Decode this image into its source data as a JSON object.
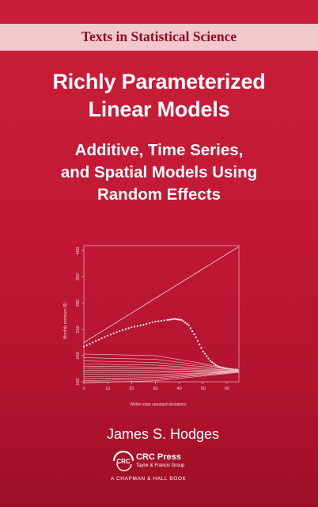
{
  "series": {
    "label": "Texts in Statistical Science"
  },
  "title": {
    "line1": "Richly Parameterized",
    "line2": "Linear Models"
  },
  "subtitle": {
    "line1": "Additive, Time Series,",
    "line2": "and Spatial Models Using",
    "line3": "Random Effects"
  },
  "author": "James S. Hodges",
  "publisher": {
    "logo": "CRC",
    "name": "CRC Press",
    "group": "Taylor & Francis Group",
    "imprint": "A CHAPMAN & HALL BOOK"
  },
  "colors": {
    "cover": "#c21935",
    "band": "#f2c7cd",
    "series_text": "#8a1020"
  },
  "chart_data": {
    "type": "line",
    "xlabel": "Within-state standard deviations",
    "ylabel": "Monthly premium ($)",
    "xlim": [
      0,
      65
    ],
    "ylim": [
      150,
      410
    ],
    "x_ticks": [
      "0",
      "10",
      "20",
      "30",
      "40",
      "50",
      "60"
    ],
    "y_ticks": [
      "150",
      "200",
      "250",
      "300",
      "350",
      "400"
    ],
    "series": [
      {
        "style": "line",
        "x": [
          0,
          65
        ],
        "y": [
          225,
          408
        ]
      },
      {
        "style": "dotted",
        "x": [
          0,
          5,
          10,
          15,
          20,
          25,
          30,
          35,
          38,
          41,
          44,
          47,
          50,
          53,
          56,
          59,
          62,
          65
        ],
        "y": [
          217,
          228,
          238,
          247,
          254,
          259,
          265,
          268,
          270,
          268,
          258,
          235,
          208,
          190,
          180,
          176,
          174,
          173
        ]
      },
      {
        "style": "line",
        "x": [
          0,
          30,
          50,
          65
        ],
        "y": [
          203,
          200,
          185,
          172
        ]
      },
      {
        "style": "line",
        "x": [
          0,
          30,
          50,
          65
        ],
        "y": [
          196,
          193,
          182,
          172
        ]
      },
      {
        "style": "line",
        "x": [
          0,
          30,
          50,
          65
        ],
        "y": [
          190,
          187,
          179,
          172
        ]
      },
      {
        "style": "line",
        "x": [
          0,
          30,
          50,
          65
        ],
        "y": [
          184,
          182,
          176,
          171
        ]
      },
      {
        "style": "line",
        "x": [
          0,
          30,
          50,
          65
        ],
        "y": [
          180,
          178,
          174,
          171
        ]
      },
      {
        "style": "line",
        "x": [
          0,
          30,
          50,
          65
        ],
        "y": [
          176,
          175,
          172,
          170
        ]
      },
      {
        "style": "line",
        "x": [
          0,
          30,
          50,
          65
        ],
        "y": [
          172,
          171,
          170,
          170
        ]
      },
      {
        "style": "line",
        "x": [
          0,
          30,
          50,
          65
        ],
        "y": [
          168,
          168,
          169,
          170
        ]
      },
      {
        "style": "line",
        "x": [
          0,
          30,
          50,
          65
        ],
        "y": [
          164,
          164,
          167,
          170
        ]
      },
      {
        "style": "line",
        "x": [
          0,
          30,
          50,
          65
        ],
        "y": [
          160,
          161,
          166,
          169
        ]
      },
      {
        "style": "line",
        "x": [
          0,
          30,
          50,
          65
        ],
        "y": [
          156,
          158,
          164,
          169
        ]
      },
      {
        "style": "line",
        "x": [
          0,
          30,
          50,
          65
        ],
        "y": [
          152,
          155,
          163,
          169
        ]
      },
      {
        "style": "line",
        "x": [
          0,
          30,
          50,
          65
        ],
        "y": [
          148,
          152,
          161,
          168
        ]
      }
    ]
  }
}
